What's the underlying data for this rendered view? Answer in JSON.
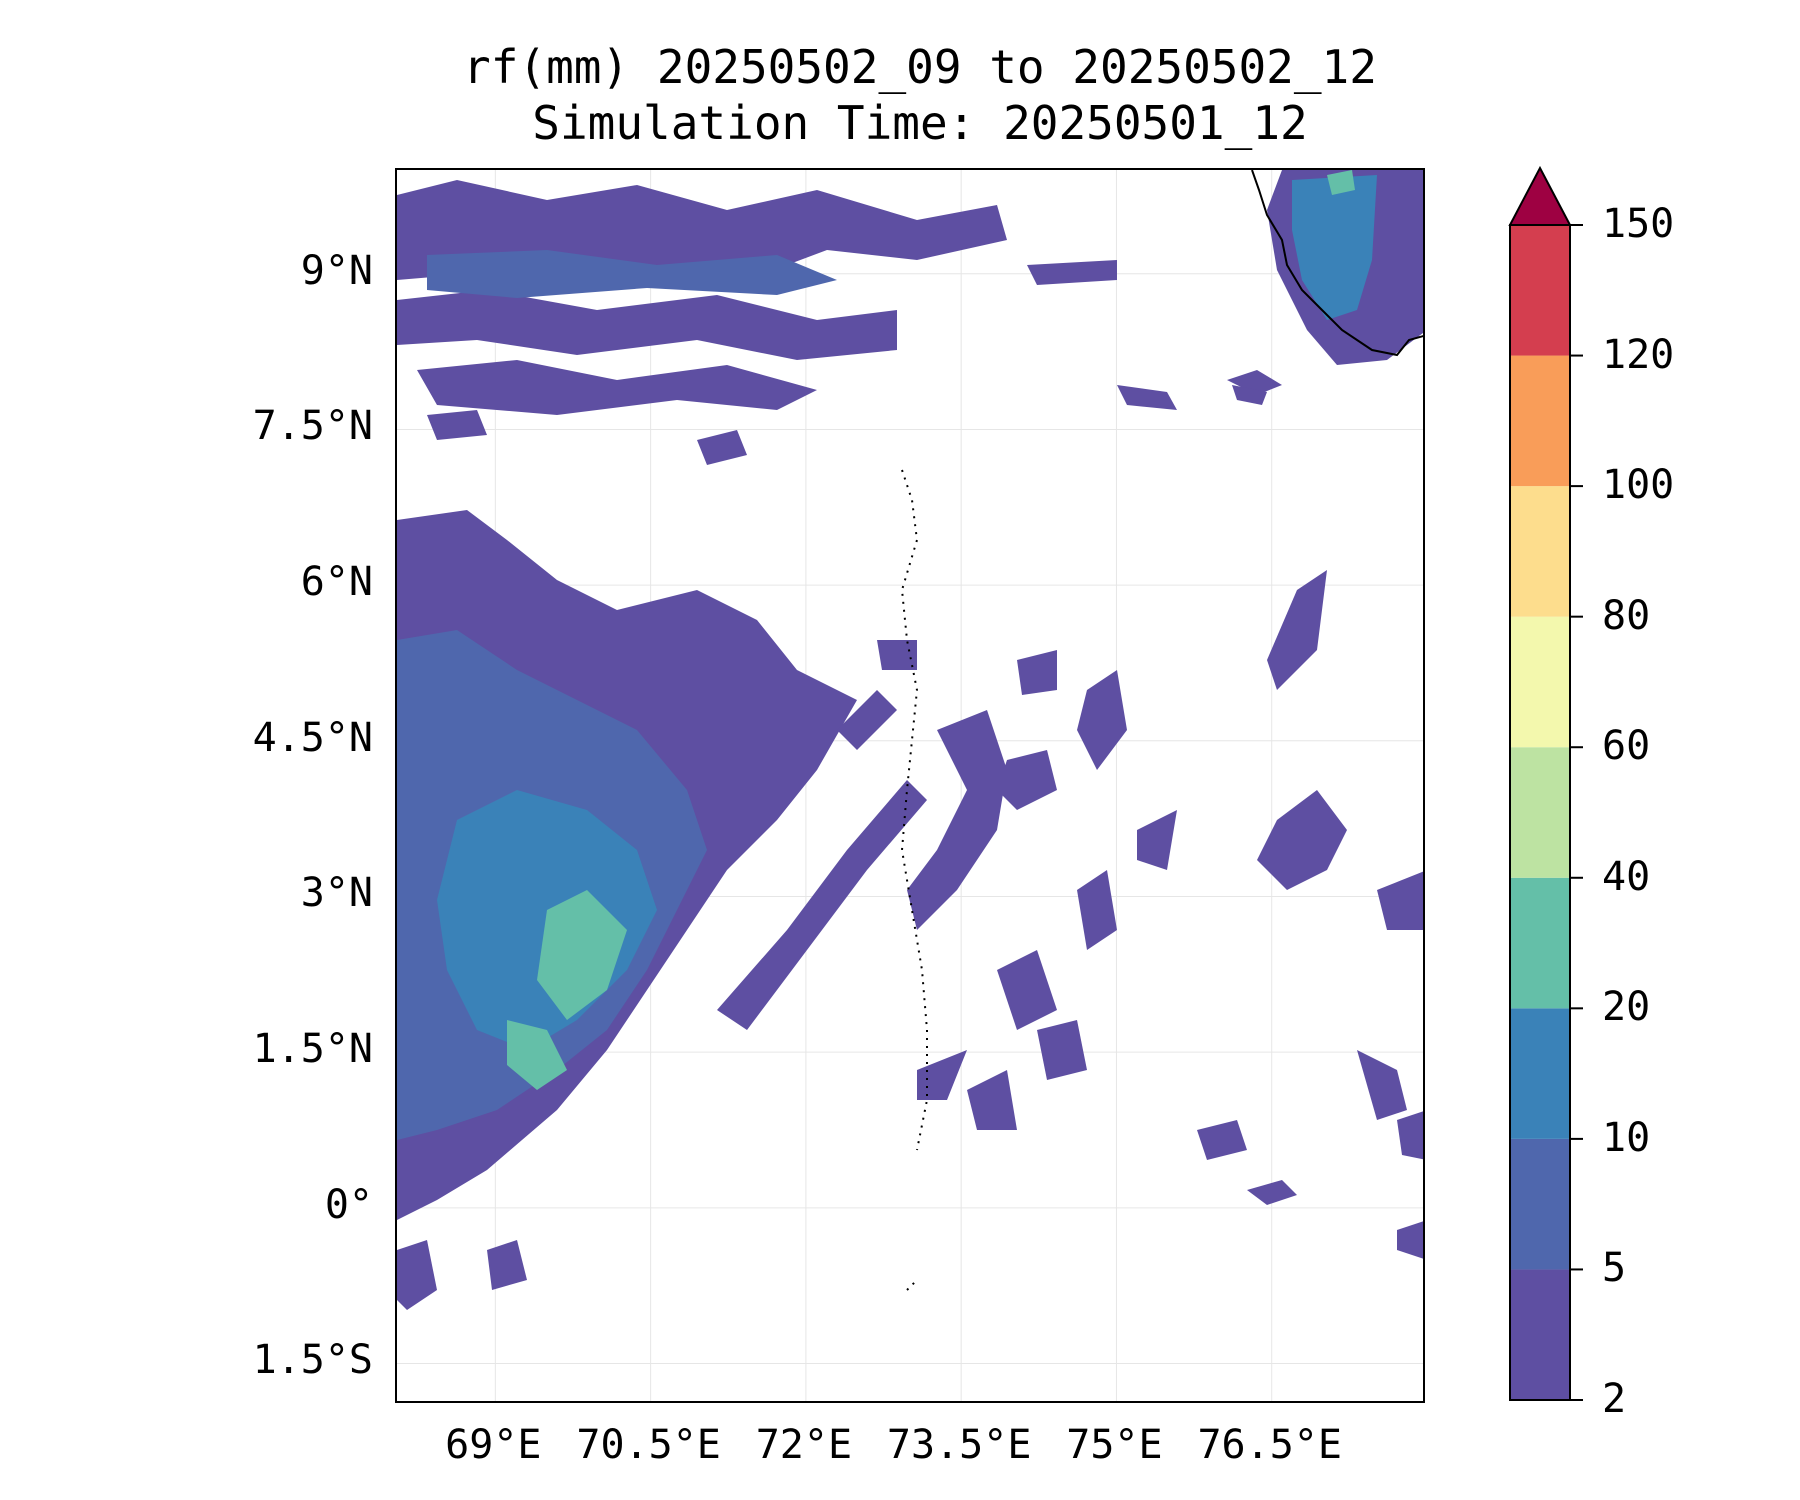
{
  "title": {
    "line1": "rf(mm) 20250502_09 to 20250502_12",
    "line2": "Simulation Time: 20250501_12"
  },
  "map": {
    "lat_labels": [
      "9°N",
      "7.5°N",
      "6°N",
      "4.5°N",
      "3°N",
      "1.5°N",
      "0°",
      "1.5°S"
    ],
    "lat_values": [
      9,
      7.5,
      6,
      4.5,
      3,
      1.5,
      0,
      -1.5
    ],
    "lon_labels": [
      "69°E",
      "70.5°E",
      "72°E",
      "73.5°E",
      "75°E",
      "76.5°E"
    ],
    "lon_values": [
      69,
      70.5,
      72,
      73.5,
      75,
      76.5
    ],
    "extent": {
      "lon_min": 68.05,
      "lon_max": 78.0,
      "lat_min": -1.9,
      "lat_max": 10.0
    },
    "gridlines": true
  },
  "colorbar": {
    "levels": [
      "2",
      "5",
      "10",
      "20",
      "40",
      "60",
      "80",
      "100",
      "120",
      "150"
    ],
    "colors": [
      "#5e4fa2",
      "#4f67ad",
      "#3a82b8",
      "#64bfa8",
      "#bde3a2",
      "#f3f8ad",
      "#fddd8d",
      "#f99d59",
      "#d43e4f",
      "#9e0142"
    ],
    "extend": "max"
  }
}
